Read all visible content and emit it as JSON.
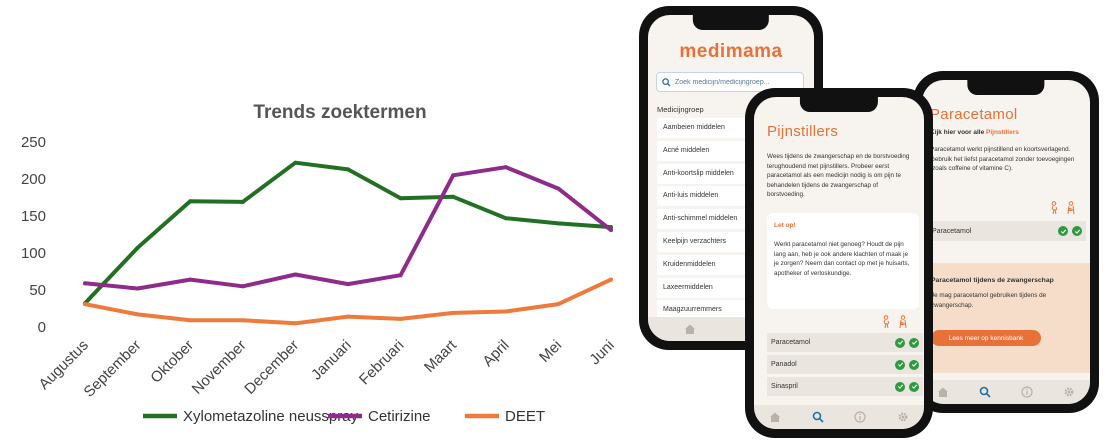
{
  "chart_data": {
    "type": "line",
    "title": "Trends zoektermen",
    "categories": [
      "Augustus",
      "September",
      "Oktober",
      "November",
      "December",
      "Januari",
      "Februari",
      "Maart",
      "April",
      "Mei",
      "Juni"
    ],
    "ylim": [
      0,
      250
    ],
    "yticks": [
      0,
      50,
      100,
      150,
      200,
      250
    ],
    "grid": false,
    "legend_position": "bottom",
    "series": [
      {
        "name": "Xylometazoline neusspray",
        "color": "#237024",
        "values": [
          32,
          107,
          170,
          169,
          222,
          213,
          174,
          176,
          147,
          140,
          135
        ]
      },
      {
        "name": "Cetirizine",
        "color": "#8e2c8c",
        "values": [
          59,
          52,
          64,
          55,
          71,
          58,
          70,
          205,
          216,
          187,
          131
        ]
      },
      {
        "name": "DEET",
        "color": "#ee7a3c",
        "values": [
          31,
          17,
          9,
          9,
          5,
          14,
          11,
          19,
          21,
          31,
          64
        ]
      }
    ]
  },
  "colors": {
    "accent": "#e8713a",
    "check": "#2e9a3e",
    "search_text": "#5b7896"
  },
  "phone1": {
    "logo": "medimama",
    "search_placeholder": "Zoek medicijn/medicijngroep...",
    "group_title": "Medicijngroep",
    "items": [
      "Aambeien middelen",
      "Acné middelen",
      "Anti-koortslip middelen",
      "Anti-luis middelen",
      "Anti-schimmel middelen",
      "Keelpijn verzachters",
      "Kruidenmiddelen",
      "Laxeermiddelen",
      "Maagzuurremmers"
    ]
  },
  "phone2": {
    "title": "Pijnstillers",
    "intro": "Wees tijdens de zwangerschap en de borstvoeding terughoudend met pijnstillers. Probeer eerst paracetamol als een medicijn nodig is om pijn te behandelen tijdens de zwangerschap of borstvoeding.",
    "card_title": "Let op!",
    "card_text": "Werkt paracetamol niet genoeg? Houdt de pijn lang aan, heb je ook andere klachten of maak je je zorgen? Neem dan contact op met je huisarts, apotheker of verloskundige.",
    "rows": [
      "Paracetamol",
      "Panadol",
      "Sinaspril"
    ]
  },
  "phone3": {
    "title": "Paracetamol",
    "hint": "Kijk hier voor alle",
    "hint_link": "Pijnstillers",
    "body": "Paracetamol werkt pijnstillend en koortsverlagend. Gebruik het liefst paracetamol zonder toevoegingen (zoals coffeine of vitamine C).",
    "row": "Paracetamol",
    "panel_title": "Paracetamol tijdens de zwangerschap",
    "panel_text": "Je mag paracetamol gebruiken tijdens de zwangerschap.",
    "button": "Lees meer op kennisbank"
  },
  "icons": {
    "search": "search-icon",
    "tabs": [
      "home-icon",
      "search-icon",
      "info-icon",
      "settings-icon"
    ],
    "pregnancy": "pregnant-woman-icon",
    "breastfeeding": "breastfeeding-icon",
    "check": "check-circle-icon"
  }
}
